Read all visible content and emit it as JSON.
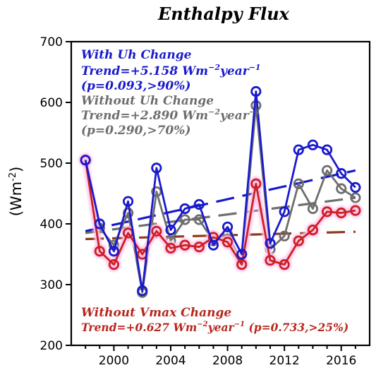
{
  "chart_data": {
    "type": "line",
    "title": "Enthalpy Flux",
    "ylabel": "(Wm",
    "ylabel_sup": "-2",
    "ylabel_close": ")",
    "ylim": [
      200,
      700
    ],
    "xlim": [
      1997,
      2018
    ],
    "y_ticks": [
      200,
      300,
      400,
      500,
      600,
      700
    ],
    "x_ticks": [
      2000,
      2004,
      2008,
      2012,
      2016
    ],
    "x": [
      1998,
      1999,
      2000,
      2001,
      2002,
      2003,
      2004,
      2005,
      2006,
      2007,
      2008,
      2009,
      2010,
      2011,
      2012,
      2013,
      2014,
      2015,
      2016,
      2017
    ],
    "series": [
      {
        "key": "with_uh",
        "color": "#1a1acc",
        "values": [
          505,
          400,
          355,
          437,
          290,
          492,
          390,
          425,
          432,
          365,
          395,
          350,
          618,
          368,
          420,
          522,
          530,
          522,
          483,
          460
        ],
        "trend": [
          388,
          488
        ],
        "labels": {
          "name": "With Uh Change",
          "trend_prefix": "Trend=+5.158 Wm",
          "trend_sup1": "−2",
          "trend_mid": "year",
          "trend_sup2": "−1",
          "pvalue": "(p=0.093,>90%)"
        }
      },
      {
        "key": "without_uh",
        "color": "#6e6e6e",
        "values": [
          505,
          393,
          365,
          418,
          287,
          453,
          372,
          407,
          407,
          372,
          383,
          337,
          595,
          358,
          380,
          466,
          425,
          488,
          458,
          443
        ],
        "trend": [
          385,
          443
        ],
        "labels": {
          "name": "Without Uh Change",
          "trend_prefix": "Trend=+2.890 Wm",
          "trend_sup1": "−2",
          "trend_mid": "year",
          "trend_sup2": "−1",
          "pvalue": "(p=0.290,>70%)"
        }
      },
      {
        "key": "without_vmax",
        "color": "#cc2020",
        "values": [
          505,
          355,
          333,
          385,
          350,
          388,
          360,
          365,
          362,
          378,
          370,
          333,
          466,
          340,
          333,
          372,
          390,
          420,
          418,
          422
        ],
        "trend": [
          375,
          387
        ],
        "labels": {
          "name": "Without Vmax Change",
          "trend_prefix": "Trend=+0.627 Wm",
          "trend_sup1": "−2",
          "trend_mid": "year",
          "trend_sup2": "−1",
          "pvalue": "(p=0.733,>25%)"
        }
      }
    ]
  },
  "colors": {
    "halo": "#ffc6ee",
    "trend_red": "#8b3a1a",
    "text_red": "#b5281e"
  }
}
